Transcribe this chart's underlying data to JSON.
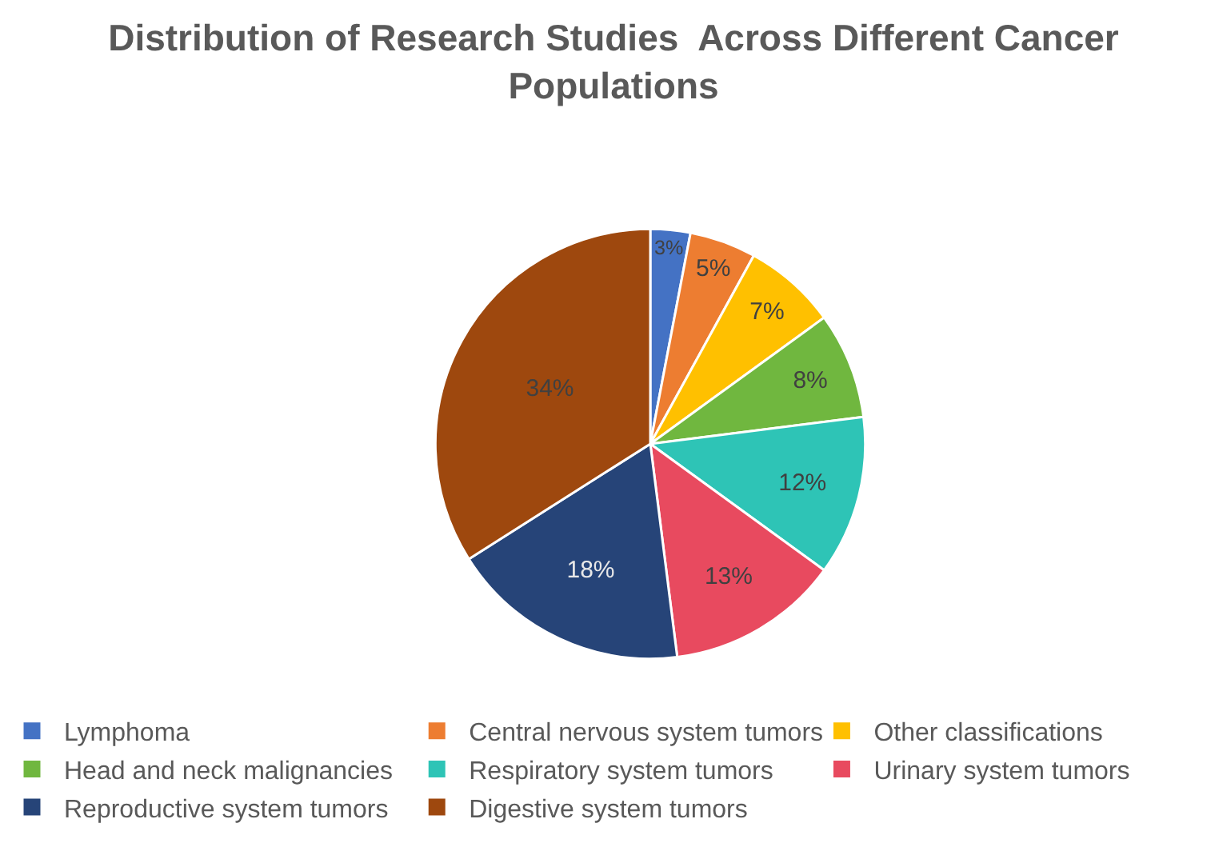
{
  "chart_data": {
    "type": "pie",
    "title": "Distribution of Research Studies  Across Different Cancer Populations",
    "categories": [
      "Lymphoma",
      "Central nervous system tumors",
      "Other classifications",
      "Head and neck malignancies",
      "Respiratory system tumors",
      "Urinary system tumors",
      "Reproductive system tumors",
      "Digestive system tumors"
    ],
    "values": [
      3,
      5,
      7,
      8,
      12,
      13,
      18,
      34
    ],
    "value_labels": [
      "3%",
      "5%",
      "7%",
      "8%",
      "12%",
      "13%",
      "18%",
      "34%"
    ],
    "colors": [
      "#4472c4",
      "#ed7d31",
      "#ffc000",
      "#70b73f",
      "#2ec4b6",
      "#e84a5f",
      "#264478",
      "#9e480e"
    ],
    "legend": "bottom"
  }
}
